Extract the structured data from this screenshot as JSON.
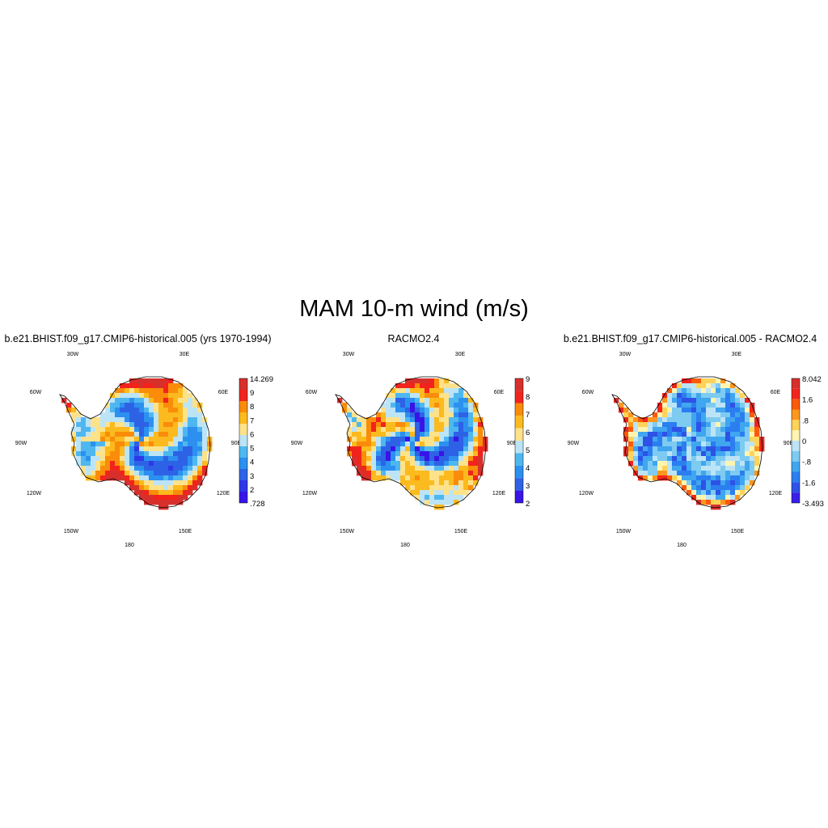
{
  "title": "MAM 10-m wind (m/s)",
  "lon_labels": [
    "30W",
    "30E",
    "60W",
    "60E",
    "90W",
    "90E",
    "120W",
    "120E",
    "150W",
    "150E",
    "180"
  ],
  "chart_data": [
    {
      "type": "heatmap",
      "title": "b.e21.BHIST.f09_g17.CMIP6-historical.005 (yrs 1970-1994)",
      "projection": "south polar stereographic",
      "region": "Antarctica",
      "variable": "MAM 10-m wind",
      "units": "m/s",
      "colorbar": {
        "min_label": ".728",
        "max_label": "14.269",
        "tick_labels": [
          "14.269",
          "9",
          "8",
          "7",
          "6",
          "5",
          "4",
          "3",
          "2",
          ".728"
        ],
        "colors": [
          "#d7302c",
          "#f2231c",
          "#fa8c0a",
          "#fbba1e",
          "#fee28a",
          "#bce4f6",
          "#4fb7ef",
          "#2b90f0",
          "#2e62e6",
          "#2e38e8",
          "#3814e8"
        ]
      },
      "value_range": [
        0.728,
        14.269
      ]
    },
    {
      "type": "heatmap",
      "title": "RACMO2.4",
      "projection": "south polar stereographic",
      "region": "Antarctica",
      "variable": "MAM 10-m wind",
      "units": "m/s",
      "colorbar": {
        "tick_labels": [
          "9",
          "8",
          "7",
          "6",
          "5",
          "4",
          "3",
          "2"
        ],
        "colors": [
          "#d7302c",
          "#f2231c",
          "#fa8c0a",
          "#fbba1e",
          "#fee28a",
          "#bce4f6",
          "#4fb7ef",
          "#2b90f0",
          "#2e62e6",
          "#3814e8"
        ]
      }
    },
    {
      "type": "heatmap",
      "title": "b.e21.BHIST.f09_g17.CMIP6-historical.005 - RACMO2.4",
      "projection": "south polar stereographic",
      "region": "Antarctica",
      "variable": "MAM 10-m wind difference",
      "units": "m/s",
      "colorbar": {
        "min_label": "-3.493",
        "max_label": "8.042",
        "tick_labels": [
          "8.042",
          "1.6",
          ".8",
          "0",
          "-.8",
          "-1.6",
          "-3.493"
        ],
        "colors": [
          "#d7302c",
          "#f2231c",
          "#fa5a0a",
          "#fb961e",
          "#fed35a",
          "#fff5b0",
          "#bce4f6",
          "#7ecbf2",
          "#3fa6ef",
          "#2b7ef0",
          "#2e52e6",
          "#3820e8"
        ]
      },
      "value_range": [
        -3.493,
        8.042
      ]
    }
  ]
}
